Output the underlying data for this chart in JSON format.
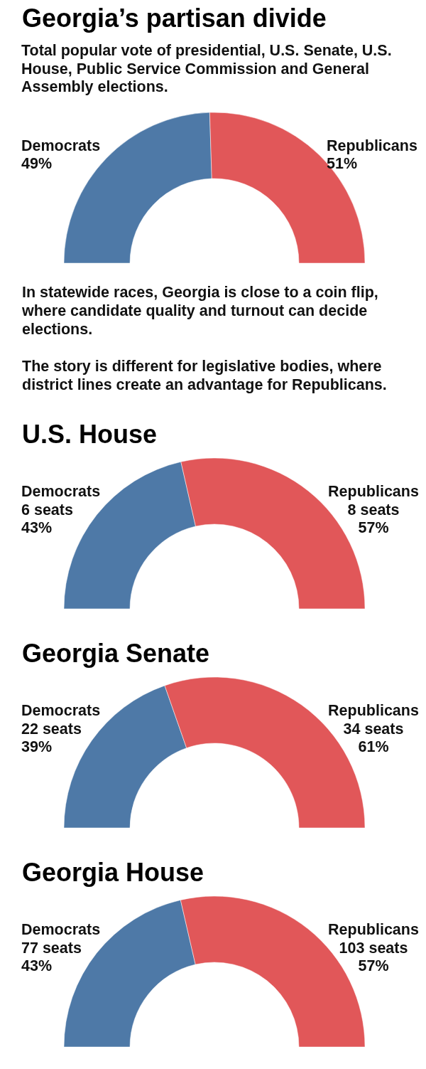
{
  "chart_data": [
    {
      "type": "donut",
      "title": "Georgia’s partisan divide",
      "subtitle": "Total popular vote of presidential, U.S. Senate, U.S. House, Public Service Commission and General Assembly elections.",
      "categories": [
        "Democrats",
        "Republicans"
      ],
      "values": [
        49,
        51
      ],
      "colors": [
        "#4e79a7",
        "#e15759"
      ],
      "value_labels": [
        "49%",
        "51%"
      ],
      "annotations": [
        "In statewide races, Georgia is close to a coin flip, where candidate quality and turnout can decide elections.",
        "The story is different for legislative bodies, where district lines create an advantage for Republicans."
      ]
    },
    {
      "type": "donut",
      "title": "U.S. House",
      "categories": [
        "Democrats",
        "Republicans"
      ],
      "values": [
        6,
        8
      ],
      "colors": [
        "#4e79a7",
        "#e15759"
      ],
      "value_labels": [
        "6 seats\n43%",
        "8 seats\n57%"
      ]
    },
    {
      "type": "donut",
      "title": "Georgia Senate",
      "categories": [
        "Democrats",
        "Republicans"
      ],
      "values": [
        22,
        34
      ],
      "colors": [
        "#4e79a7",
        "#e15759"
      ],
      "value_labels": [
        "22 seats\n39%",
        "34 seats\n61%"
      ]
    },
    {
      "type": "donut",
      "title": "Georgia House",
      "categories": [
        "Democrats",
        "Republicans"
      ],
      "values": [
        77,
        103
      ],
      "colors": [
        "#4e79a7",
        "#e15759"
      ],
      "value_labels": [
        "77 seats\n43%",
        "103 seats\n57%"
      ]
    }
  ]
}
